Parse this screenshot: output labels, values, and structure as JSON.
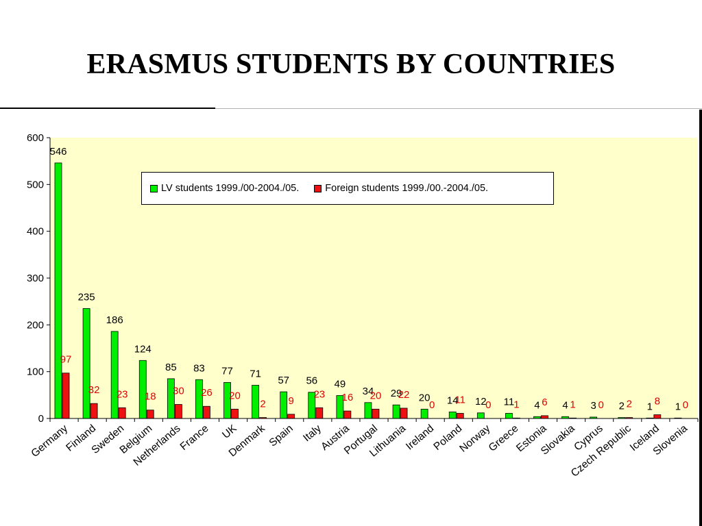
{
  "title": "ERASMUS STUDENTS BY COUNTRIES",
  "colors": {
    "series_a": "#00ee00",
    "series_b": "#ee1111",
    "plot_bg": "#ffffcc",
    "label_b": "#dd0000"
  },
  "chart_data": {
    "type": "bar",
    "title": "ERASMUS STUDENTS BY COUNTRIES",
    "xlabel": "",
    "ylabel": "",
    "ylim": [
      0,
      600
    ],
    "yticks": [
      "0",
      "100",
      "200",
      "300",
      "400",
      "500",
      "600"
    ],
    "grid": false,
    "legend": "top-center",
    "categories": [
      "Germany",
      "Finland",
      "Sweden",
      "Belgium",
      "Netherlands",
      "France",
      "UK",
      "Denmark",
      "Spain",
      "Italy",
      "Austria",
      "Portugal",
      "Lithuania",
      "Ireland",
      "Poland",
      "Norway",
      "Greece",
      "Estonia",
      "Slovakia",
      "Cyprus",
      "Czech Republic",
      "Iceland",
      "Slovenia"
    ],
    "series": [
      {
        "name": "LV students 1999./00-2004./05.",
        "values": [
          546,
          235,
          186,
          124,
          85,
          83,
          77,
          71,
          57,
          56,
          49,
          34,
          29,
          20,
          14,
          12,
          11,
          4,
          4,
          3,
          2,
          1,
          1
        ]
      },
      {
        "name": "Foreign students 1999./00.-2004./05.",
        "values": [
          97,
          32,
          23,
          18,
          30,
          26,
          20,
          2,
          9,
          23,
          16,
          20,
          22,
          0,
          11,
          0,
          1,
          6,
          1,
          0,
          2,
          8,
          0
        ]
      }
    ]
  }
}
